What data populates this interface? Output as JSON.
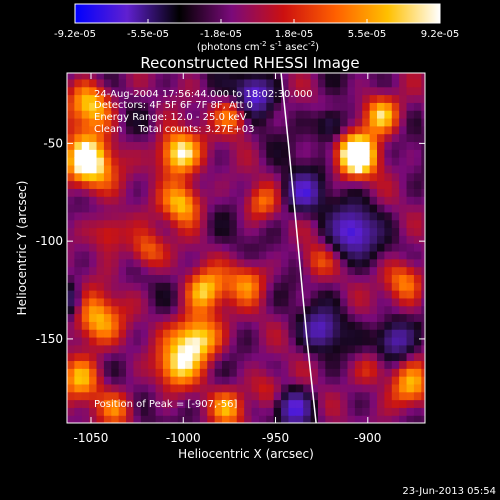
{
  "footer_date": "23-Jun-2013 05:54",
  "chart_data": {
    "type": "heatmap",
    "title": "Reconstructed RHESSI Image",
    "xlabel": "Heliocentric X (arcsec)",
    "ylabel": "Heliocentric Y (arcsec)",
    "xlim": [
      -1063,
      -869
    ],
    "ylim": [
      -193,
      -14
    ],
    "xticks": [
      -1050,
      -1000,
      -950,
      -900
    ],
    "yticks": [
      -50,
      -100,
      -150
    ],
    "colorbar": {
      "min": -9.2e-05,
      "max": 9.2e-05,
      "tick_labels": [
        "-9.2e-05",
        "-5.5e-05",
        "-1.8e-05",
        "1.8e-05",
        "5.5e-05",
        "9.2e-05"
      ],
      "unit_prefix": "(photons cm",
      "unit_exp1": "-2",
      "unit_mid": " s",
      "unit_exp2": "-1",
      "unit_mid2": " asec",
      "unit_exp3": "-2",
      "unit_suffix": ")",
      "colors": [
        "#0000ff",
        "#6020d0",
        "#000000",
        "#7a0a7a",
        "#cc1010",
        "#ff6000",
        "#ffc000",
        "#ffffff"
      ]
    },
    "info_lines": [
      "24-Aug-2004 17:56:44.000 to 18:02:30.000",
      "Detectors: 4F 5F 6F 7F 8F, Att 0",
      "Energy Range: 12.0 - 25.0 keV",
      "Clean     Total counts: 3.27E+03"
    ],
    "peak_label": "Position of Peak = [-907,-56]",
    "limb_curve": [
      [
        -947,
        -14
      ],
      [
        -943,
        -50
      ],
      [
        -938,
        -100
      ],
      [
        -933,
        -150
      ],
      [
        -928,
        -193
      ]
    ]
  }
}
